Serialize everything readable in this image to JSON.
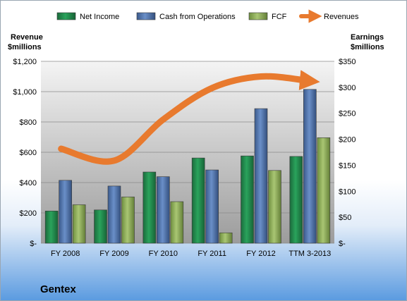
{
  "chart_data": {
    "type": "bar",
    "title": "Gentex",
    "categories": [
      "FY 2008",
      "FY 2009",
      "FY 2010",
      "FY 2011",
      "FY 2012",
      "TTM 3-2013"
    ],
    "left_axis": {
      "label_line1": "Revenue",
      "label_line2": "$millions",
      "ylim": [
        0,
        1200
      ],
      "ticks": [
        0,
        200,
        400,
        600,
        800,
        1000,
        1200
      ],
      "tick_labels": [
        "$-",
        "$200",
        "$400",
        "$600",
        "$800",
        "$1,000",
        "$1,200"
      ]
    },
    "right_axis": {
      "label_line1": "Earnings",
      "label_line2": "$millions",
      "ylim": [
        0,
        350
      ],
      "ticks": [
        0,
        50,
        100,
        150,
        200,
        250,
        300,
        350
      ],
      "tick_labels": [
        "$-",
        "$50",
        "$100",
        "$150",
        "$200",
        "$250",
        "$300",
        "$350"
      ]
    },
    "series": [
      {
        "name": "Net Income",
        "type": "bar",
        "axis": "right",
        "color": "#1e8a4a",
        "values": [
          62,
          64,
          137,
          164,
          168,
          167
        ]
      },
      {
        "name": "Cash from Operations",
        "type": "bar",
        "axis": "right",
        "color": "#4a6fa8",
        "values": [
          121,
          110,
          128,
          141,
          259,
          296
        ]
      },
      {
        "name": "FCF",
        "type": "bar",
        "axis": "right",
        "color": "#8aab55",
        "values": [
          74,
          89,
          80,
          20,
          140,
          203
        ]
      },
      {
        "name": "Revenues",
        "type": "line",
        "axis": "left",
        "color": "#e87a2e",
        "values": [
          623,
          545,
          816,
          1024,
          1100,
          1070
        ]
      }
    ],
    "legend_position": "top",
    "grid": true
  }
}
